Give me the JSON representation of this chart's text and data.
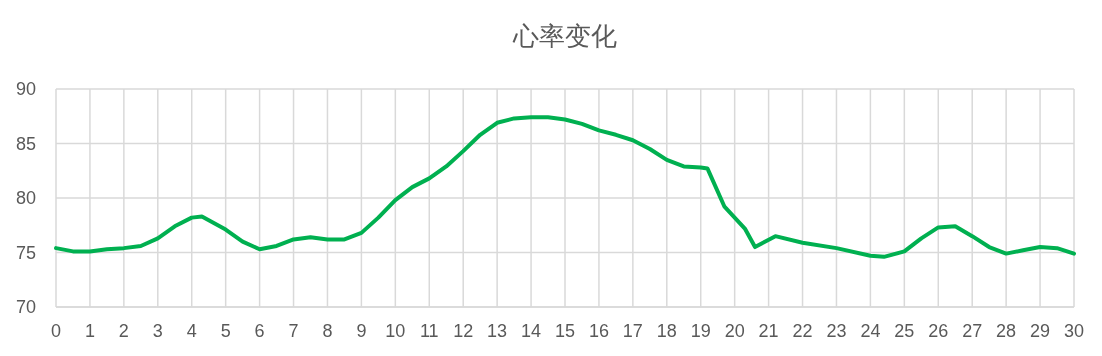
{
  "chart_data": {
    "type": "line",
    "title": "心率变化",
    "x": [
      0,
      0.5,
      1,
      1.5,
      2,
      2.5,
      3,
      3.5,
      4,
      4.3,
      5,
      5.5,
      6,
      6.5,
      7,
      7.5,
      8,
      8.5,
      9,
      9.5,
      10,
      10.5,
      11,
      11.5,
      12,
      12.5,
      13,
      13.5,
      14,
      14.5,
      15,
      15.5,
      16,
      16.5,
      17,
      17.5,
      18,
      18.5,
      19,
      19.2,
      19.7,
      20.3,
      20.6,
      21.2,
      22,
      23,
      24,
      24.4,
      25,
      25.5,
      26,
      26.5,
      27,
      27.5,
      28,
      28.5,
      29,
      29.5,
      30
    ],
    "series": [
      {
        "color": "#00b050",
        "values": [
          75.4,
          75.1,
          75.1,
          75.3,
          75.4,
          75.6,
          76.3,
          77.4,
          78.2,
          78.3,
          77.1,
          76.0,
          75.3,
          75.6,
          76.2,
          76.4,
          76.2,
          76.2,
          76.8,
          78.2,
          79.8,
          81.0,
          81.8,
          82.9,
          84.3,
          85.8,
          86.9,
          87.3,
          87.4,
          87.4,
          87.2,
          86.8,
          86.2,
          85.8,
          85.3,
          84.5,
          83.5,
          82.9,
          82.8,
          82.7,
          79.2,
          77.2,
          75.5,
          76.5,
          75.9,
          75.4,
          74.7,
          74.6,
          75.1,
          76.3,
          77.3,
          77.4,
          76.5,
          75.5,
          74.9,
          75.2,
          75.5,
          75.4,
          74.9
        ]
      }
    ],
    "xlim": [
      0,
      30
    ],
    "xticks": [
      0,
      1,
      2,
      3,
      4,
      5,
      6,
      7,
      8,
      9,
      10,
      11,
      12,
      13,
      14,
      15,
      16,
      17,
      18,
      19,
      20,
      21,
      22,
      23,
      24,
      25,
      26,
      27,
      28,
      29,
      30
    ],
    "ylim": [
      70,
      90
    ],
    "yticks": [
      70,
      75,
      80,
      85,
      90
    ],
    "grid": true,
    "marker": "none",
    "line_style": "solid"
  }
}
